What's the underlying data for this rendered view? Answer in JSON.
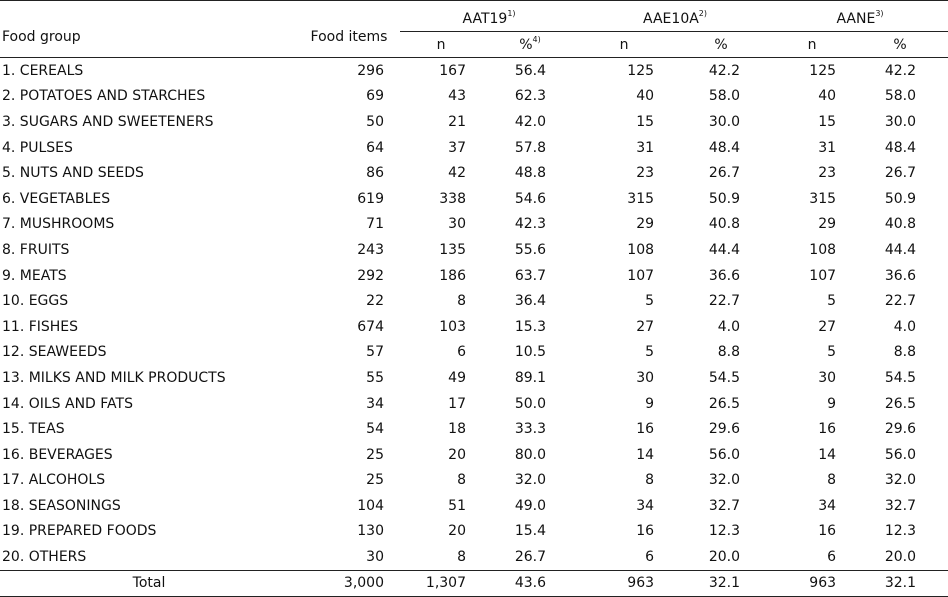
{
  "headers": {
    "food_group": "Food group",
    "food_items": "Food items",
    "groups": [
      {
        "name": "AAT19",
        "sup": "1)"
      },
      {
        "name": "AAE10A",
        "sup": "2)"
      },
      {
        "name": "AANE",
        "sup": "3)"
      }
    ],
    "n": "n",
    "pct": "%",
    "pct_sup": "4)"
  },
  "rows": [
    {
      "group": "1. CEREALS",
      "items": "296",
      "aat19_n": "167",
      "aat19_pct": "56.4",
      "aae10a_n": "125",
      "aae10a_pct": "42.2",
      "aane_n": "125",
      "aane_pct": "42.2"
    },
    {
      "group": "2. POTATOES AND STARCHES",
      "items": "69",
      "aat19_n": "43",
      "aat19_pct": "62.3",
      "aae10a_n": "40",
      "aae10a_pct": "58.0",
      "aane_n": "40",
      "aane_pct": "58.0"
    },
    {
      "group": "3. SUGARS AND SWEETENERS",
      "items": "50",
      "aat19_n": "21",
      "aat19_pct": "42.0",
      "aae10a_n": "15",
      "aae10a_pct": "30.0",
      "aane_n": "15",
      "aane_pct": "30.0"
    },
    {
      "group": "4. PULSES",
      "items": "64",
      "aat19_n": "37",
      "aat19_pct": "57.8",
      "aae10a_n": "31",
      "aae10a_pct": "48.4",
      "aane_n": "31",
      "aane_pct": "48.4"
    },
    {
      "group": "5. NUTS AND SEEDS",
      "items": "86",
      "aat19_n": "42",
      "aat19_pct": "48.8",
      "aae10a_n": "23",
      "aae10a_pct": "26.7",
      "aane_n": "23",
      "aane_pct": "26.7"
    },
    {
      "group": "6. VEGETABLES",
      "items": "619",
      "aat19_n": "338",
      "aat19_pct": "54.6",
      "aae10a_n": "315",
      "aae10a_pct": "50.9",
      "aane_n": "315",
      "aane_pct": "50.9"
    },
    {
      "group": "7. MUSHROOMS",
      "items": "71",
      "aat19_n": "30",
      "aat19_pct": "42.3",
      "aae10a_n": "29",
      "aae10a_pct": "40.8",
      "aane_n": "29",
      "aane_pct": "40.8"
    },
    {
      "group": "8. FRUITS",
      "items": "243",
      "aat19_n": "135",
      "aat19_pct": "55.6",
      "aae10a_n": "108",
      "aae10a_pct": "44.4",
      "aane_n": "108",
      "aane_pct": "44.4"
    },
    {
      "group": "9. MEATS",
      "items": "292",
      "aat19_n": "186",
      "aat19_pct": "63.7",
      "aae10a_n": "107",
      "aae10a_pct": "36.6",
      "aane_n": "107",
      "aane_pct": "36.6"
    },
    {
      "group": "10. EGGS",
      "items": "22",
      "aat19_n": "8",
      "aat19_pct": "36.4",
      "aae10a_n": "5",
      "aae10a_pct": "22.7",
      "aane_n": "5",
      "aane_pct": "22.7"
    },
    {
      "group": "11. FISHES",
      "items": "674",
      "aat19_n": "103",
      "aat19_pct": "15.3",
      "aae10a_n": "27",
      "aae10a_pct": "4.0",
      "aane_n": "27",
      "aane_pct": "4.0"
    },
    {
      "group": "12. SEAWEEDS",
      "items": "57",
      "aat19_n": "6",
      "aat19_pct": "10.5",
      "aae10a_n": "5",
      "aae10a_pct": "8.8",
      "aane_n": "5",
      "aane_pct": "8.8"
    },
    {
      "group": "13. MILKS AND MILK PRODUCTS",
      "items": "55",
      "aat19_n": "49",
      "aat19_pct": "89.1",
      "aae10a_n": "30",
      "aae10a_pct": "54.5",
      "aane_n": "30",
      "aane_pct": "54.5"
    },
    {
      "group": "14. OILS AND FATS",
      "items": "34",
      "aat19_n": "17",
      "aat19_pct": "50.0",
      "aae10a_n": "9",
      "aae10a_pct": "26.5",
      "aane_n": "9",
      "aane_pct": "26.5"
    },
    {
      "group": "15. TEAS",
      "items": "54",
      "aat19_n": "18",
      "aat19_pct": "33.3",
      "aae10a_n": "16",
      "aae10a_pct": "29.6",
      "aane_n": "16",
      "aane_pct": "29.6"
    },
    {
      "group": "16. BEVERAGES",
      "items": "25",
      "aat19_n": "20",
      "aat19_pct": "80.0",
      "aae10a_n": "14",
      "aae10a_pct": "56.0",
      "aane_n": "14",
      "aane_pct": "56.0"
    },
    {
      "group": "17. ALCOHOLS",
      "items": "25",
      "aat19_n": "8",
      "aat19_pct": "32.0",
      "aae10a_n": "8",
      "aae10a_pct": "32.0",
      "aane_n": "8",
      "aane_pct": "32.0"
    },
    {
      "group": "18. SEASONINGS",
      "items": "104",
      "aat19_n": "51",
      "aat19_pct": "49.0",
      "aae10a_n": "34",
      "aae10a_pct": "32.7",
      "aane_n": "34",
      "aane_pct": "32.7"
    },
    {
      "group": "19. PREPARED FOODS",
      "items": "130",
      "aat19_n": "20",
      "aat19_pct": "15.4",
      "aae10a_n": "16",
      "aae10a_pct": "12.3",
      "aane_n": "16",
      "aane_pct": "12.3"
    },
    {
      "group": "20. OTHERS",
      "items": "30",
      "aat19_n": "8",
      "aat19_pct": "26.7",
      "aae10a_n": "6",
      "aae10a_pct": "20.0",
      "aane_n": "6",
      "aane_pct": "20.0"
    }
  ],
  "total": {
    "label": "Total",
    "items": "3,000",
    "aat19_n": "1,307",
    "aat19_pct": "43.6",
    "aae10a_n": "963",
    "aae10a_pct": "32.1",
    "aane_n": "963",
    "aane_pct": "32.1"
  }
}
